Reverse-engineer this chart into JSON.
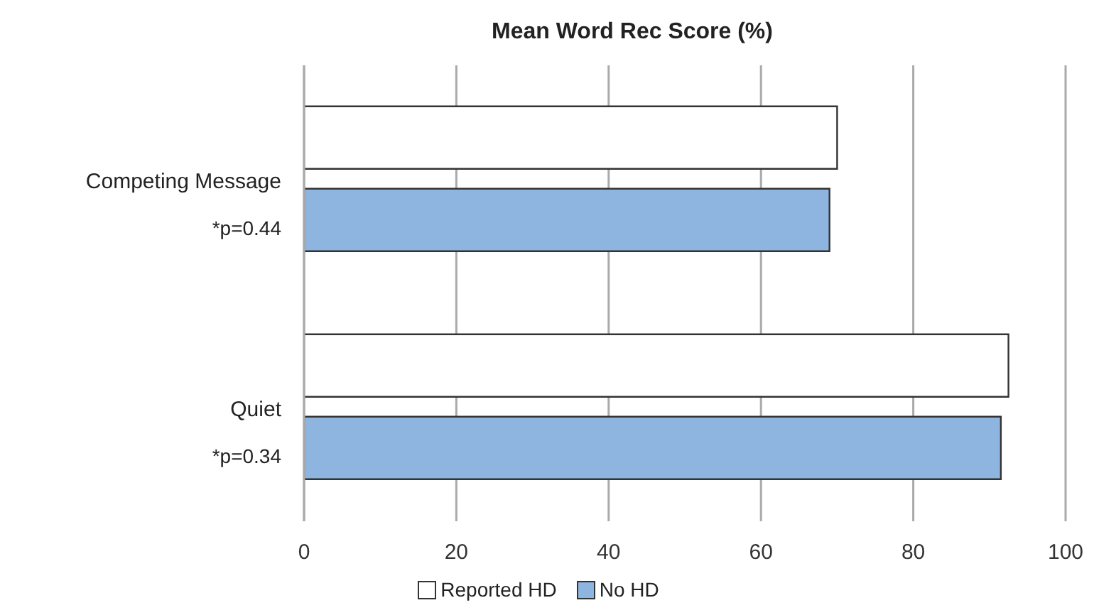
{
  "chart_data": {
    "type": "bar",
    "orientation": "horizontal",
    "title": "Mean Word Rec Score (%)",
    "categories": [
      "Competing Message",
      "Quiet"
    ],
    "series": [
      {
        "name": "Reported HD",
        "color": "#ffffff",
        "values": [
          70,
          92.5
        ]
      },
      {
        "name": "No HD",
        "color": "#8eb4e0",
        "values": [
          69,
          91.5
        ]
      }
    ],
    "xlim": [
      0,
      100
    ],
    "xticks": [
      0,
      20,
      40,
      60,
      80,
      100
    ],
    "grid": "x",
    "legend": "bottom",
    "annotations": [
      "*p=0.44",
      "*p=0.34"
    ]
  }
}
